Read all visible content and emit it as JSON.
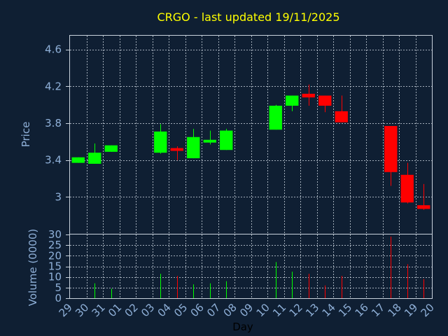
{
  "colors": {
    "background": "#0f1f33",
    "frame": "#c8d2dc",
    "grid": "#c8d2dc",
    "up": "#00ff00",
    "down": "#ff0000",
    "title": "#ffff00",
    "axis_text": "#8fb0d8"
  },
  "chart_data": {
    "type": "candlestick",
    "title": "CRGO - last updated 19/11/2025",
    "price_label": "Price",
    "volume_label": "Volume (0000)",
    "xlabel": "Day",
    "x_ticks": [
      "29",
      "30",
      "31",
      "01",
      "02",
      "03",
      "04",
      "05",
      "06",
      "07",
      "08",
      "09",
      "10",
      "11",
      "12",
      "13",
      "14",
      "15",
      "16",
      "17",
      "18",
      "19",
      "20"
    ],
    "price_ticks": [
      "4.6",
      "4.2",
      "3.8",
      "3.4",
      "3"
    ],
    "price_tick_values": [
      4.6,
      4.2,
      3.8,
      3.4,
      3.0
    ],
    "price_range": [
      2.6,
      4.75
    ],
    "volume_ticks": [
      "30",
      "25",
      "20",
      "15",
      "10",
      "5",
      "0"
    ],
    "volume_tick_values": [
      30,
      25,
      20,
      15,
      10,
      5,
      0
    ],
    "volume_range": [
      0,
      30
    ],
    "grid": true,
    "candles": [
      {
        "day": "29",
        "open": 3.37,
        "high": 3.43,
        "low": 3.37,
        "close": 3.43,
        "volume": 0
      },
      {
        "day": "30",
        "open": 3.36,
        "high": 3.58,
        "low": 3.36,
        "close": 3.48,
        "volume": 7
      },
      {
        "day": "31",
        "open": 3.49,
        "high": 3.56,
        "low": 3.49,
        "close": 3.56,
        "volume": 4.5
      },
      {
        "day": "03",
        "open": 3.48,
        "high": 3.79,
        "low": 3.47,
        "close": 3.71,
        "volume": 11.5
      },
      {
        "day": "04",
        "open": 3.53,
        "high": 3.55,
        "low": 3.4,
        "close": 3.5,
        "volume": 10.5
      },
      {
        "day": "05",
        "open": 3.42,
        "high": 3.74,
        "low": 3.42,
        "close": 3.65,
        "volume": 6.5
      },
      {
        "day": "06",
        "open": 3.59,
        "high": 3.72,
        "low": 3.57,
        "close": 3.62,
        "volume": 7
      },
      {
        "day": "07",
        "open": 3.51,
        "high": 3.74,
        "low": 3.51,
        "close": 3.72,
        "volume": 8
      },
      {
        "day": "10",
        "open": 3.73,
        "high": 4.0,
        "low": 3.73,
        "close": 3.99,
        "volume": 17
      },
      {
        "day": "11",
        "open": 3.99,
        "high": 4.1,
        "low": 3.93,
        "close": 4.1,
        "volume": 12.5
      },
      {
        "day": "12",
        "open": 4.12,
        "high": 4.22,
        "low": 3.99,
        "close": 4.08,
        "volume": 11.5
      },
      {
        "day": "13",
        "open": 4.1,
        "high": 4.1,
        "low": 3.92,
        "close": 3.99,
        "volume": 6
      },
      {
        "day": "14",
        "open": 3.93,
        "high": 4.1,
        "low": 3.81,
        "close": 3.81,
        "volume": 10.5
      },
      {
        "day": "17",
        "open": 3.77,
        "high": 3.77,
        "low": 3.12,
        "close": 3.27,
        "volume": 29
      },
      {
        "day": "18",
        "open": 3.24,
        "high": 3.37,
        "low": 2.93,
        "close": 2.94,
        "volume": 16
      },
      {
        "day": "19",
        "open": 2.91,
        "high": 3.14,
        "low": 2.86,
        "close": 2.87,
        "volume": 9
      }
    ]
  }
}
